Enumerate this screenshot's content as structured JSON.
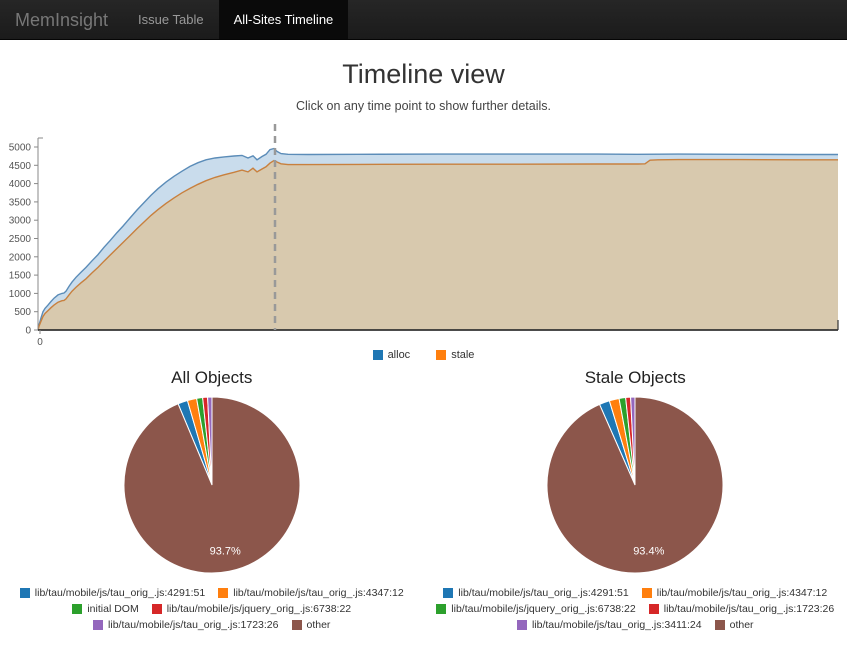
{
  "navbar": {
    "brand": "MemInsight",
    "tabs": [
      {
        "label": "Issue Table",
        "active": false
      },
      {
        "label": "All-Sites Timeline",
        "active": true
      }
    ]
  },
  "header": {
    "title": "Timeline view",
    "subtitle": "Click on any time point to show further details."
  },
  "chart_data": [
    {
      "id": "timeline",
      "type": "area",
      "title": "Timeline view",
      "xlabel": "",
      "ylabel": "",
      "ylim": [
        0,
        5400
      ],
      "xlim": [
        0,
        800
      ],
      "yticks": [
        0,
        500,
        1000,
        1500,
        2000,
        2500,
        3000,
        3500,
        4000,
        4500,
        5000
      ],
      "xticks": [
        0
      ],
      "grid": false,
      "legend_position": "bottom",
      "marker_x": 237,
      "marker_color": "#999999",
      "series": [
        {
          "name": "alloc",
          "legend_color": "#1f77b4",
          "stroke": "#5b8cb8",
          "fill": "#c9dcec",
          "points": [
            [
              0,
              0
            ],
            [
              1,
              140
            ],
            [
              3,
              330
            ],
            [
              5,
              500
            ],
            [
              7,
              590
            ],
            [
              10,
              680
            ],
            [
              13,
              780
            ],
            [
              16,
              870
            ],
            [
              20,
              960
            ],
            [
              24,
              1000
            ],
            [
              26,
              1010
            ],
            [
              28,
              1060
            ],
            [
              31,
              1190
            ],
            [
              34,
              1310
            ],
            [
              38,
              1440
            ],
            [
              43,
              1580
            ],
            [
              48,
              1710
            ],
            [
              54,
              1890
            ],
            [
              60,
              2060
            ],
            [
              66,
              2260
            ],
            [
              72,
              2440
            ],
            [
              79,
              2660
            ],
            [
              85,
              2840
            ],
            [
              92,
              3060
            ],
            [
              99,
              3280
            ],
            [
              106,
              3480
            ],
            [
              113,
              3680
            ],
            [
              120,
              3860
            ],
            [
              128,
              4040
            ],
            [
              136,
              4200
            ],
            [
              144,
              4340
            ],
            [
              152,
              4470
            ],
            [
              160,
              4570
            ],
            [
              168,
              4650
            ],
            [
              177,
              4700
            ],
            [
              186,
              4730
            ],
            [
              196,
              4755
            ],
            [
              204,
              4770
            ],
            [
              210,
              4700
            ],
            [
              215,
              4760
            ],
            [
              219,
              4650
            ],
            [
              224,
              4740
            ],
            [
              228,
              4800
            ],
            [
              232,
              4930
            ],
            [
              236,
              4960
            ],
            [
              239,
              4880
            ],
            [
              243,
              4820
            ],
            [
              250,
              4800
            ],
            [
              270,
              4795
            ],
            [
              320,
              4800
            ],
            [
              400,
              4805
            ],
            [
              480,
              4805
            ],
            [
              560,
              4805
            ],
            [
              600,
              4800
            ],
            [
              640,
              4805
            ],
            [
              700,
              4800
            ],
            [
              760,
              4795
            ],
            [
              800,
              4795
            ]
          ]
        },
        {
          "name": "stale",
          "legend_color": "#ff7f0e",
          "stroke": "#c8803e",
          "fill": "#d8c9ae",
          "points": [
            [
              0,
              0
            ],
            [
              1,
              100
            ],
            [
              3,
              240
            ],
            [
              5,
              370
            ],
            [
              7,
              450
            ],
            [
              10,
              530
            ],
            [
              13,
              610
            ],
            [
              16,
              680
            ],
            [
              20,
              760
            ],
            [
              24,
              800
            ],
            [
              26,
              810
            ],
            [
              28,
              850
            ],
            [
              31,
              960
            ],
            [
              34,
              1060
            ],
            [
              38,
              1170
            ],
            [
              43,
              1290
            ],
            [
              48,
              1400
            ],
            [
              54,
              1560
            ],
            [
              60,
              1710
            ],
            [
              66,
              1880
            ],
            [
              72,
              2040
            ],
            [
              79,
              2230
            ],
            [
              85,
              2390
            ],
            [
              92,
              2580
            ],
            [
              99,
              2770
            ],
            [
              106,
              2950
            ],
            [
              113,
              3130
            ],
            [
              120,
              3290
            ],
            [
              128,
              3460
            ],
            [
              136,
              3610
            ],
            [
              144,
              3750
            ],
            [
              152,
              3870
            ],
            [
              160,
              3980
            ],
            [
              168,
              4080
            ],
            [
              177,
              4170
            ],
            [
              186,
              4240
            ],
            [
              196,
              4310
            ],
            [
              204,
              4370
            ],
            [
              210,
              4320
            ],
            [
              215,
              4420
            ],
            [
              219,
              4320
            ],
            [
              224,
              4400
            ],
            [
              228,
              4460
            ],
            [
              232,
              4560
            ],
            [
              236,
              4630
            ],
            [
              239,
              4590
            ],
            [
              243,
              4540
            ],
            [
              250,
              4520
            ],
            [
              270,
              4520
            ],
            [
              320,
              4525
            ],
            [
              400,
              4530
            ],
            [
              480,
              4530
            ],
            [
              560,
              4535
            ],
            [
              600,
              4535
            ],
            [
              607,
              4540
            ],
            [
              612,
              4640
            ],
            [
              620,
              4650
            ],
            [
              640,
              4655
            ],
            [
              700,
              4655
            ],
            [
              760,
              4650
            ],
            [
              800,
              4650
            ]
          ]
        }
      ]
    },
    {
      "id": "all-objects",
      "type": "pie",
      "title": "All Objects",
      "pct_label": "93.7%",
      "slices": [
        {
          "label": "lib/tau/mobile/js/tau_orig_.js:4291:51",
          "pct": 1.8,
          "color": "#1f77b4"
        },
        {
          "label": "lib/tau/mobile/js/tau_orig_.js:4347:12",
          "pct": 1.7,
          "color": "#ff7f0e"
        },
        {
          "label": "initial DOM",
          "pct": 1.1,
          "color": "#2ca02c"
        },
        {
          "label": "lib/tau/mobile/js/jquery_orig_.js:6738:22",
          "pct": 0.9,
          "color": "#d62728"
        },
        {
          "label": "lib/tau/mobile/js/tau_orig_.js:1723:26",
          "pct": 0.8,
          "color": "#9467bd"
        },
        {
          "label": "other",
          "pct": 93.7,
          "color": "#8c564b"
        }
      ]
    },
    {
      "id": "stale-objects",
      "type": "pie",
      "title": "Stale Objects",
      "pct_label": "93.4%",
      "slices": [
        {
          "label": "lib/tau/mobile/js/tau_orig_.js:4291:51",
          "pct": 1.9,
          "color": "#1f77b4"
        },
        {
          "label": "lib/tau/mobile/js/tau_orig_.js:4347:12",
          "pct": 1.8,
          "color": "#ff7f0e"
        },
        {
          "label": "lib/tau/mobile/js/jquery_orig_.js:6738:22",
          "pct": 1.2,
          "color": "#2ca02c"
        },
        {
          "label": "lib/tau/mobile/js/tau_orig_.js:1723:26",
          "pct": 0.9,
          "color": "#d62728"
        },
        {
          "label": "lib/tau/mobile/js/tau_orig_.js:3411:24",
          "pct": 0.8,
          "color": "#9467bd"
        },
        {
          "label": "other",
          "pct": 93.4,
          "color": "#8c564b"
        }
      ]
    }
  ]
}
